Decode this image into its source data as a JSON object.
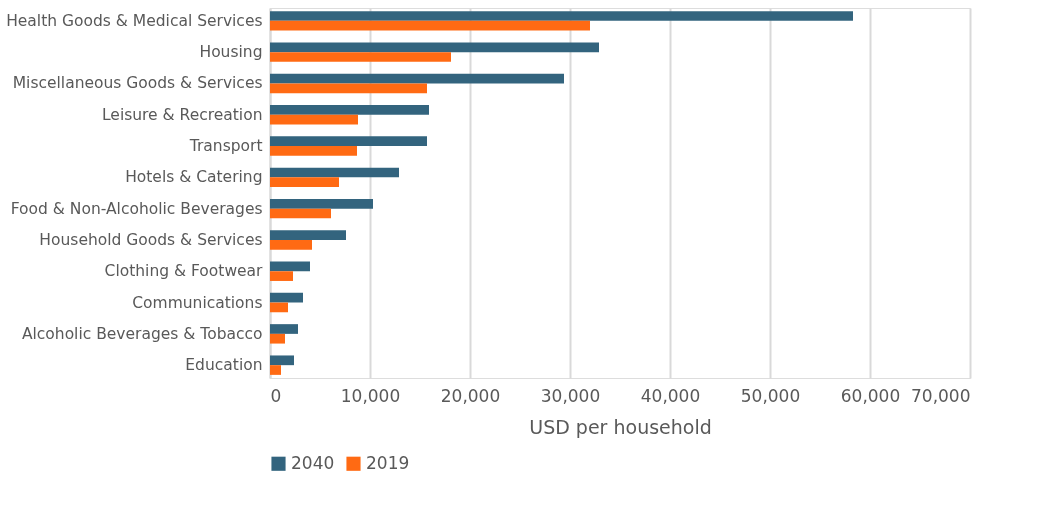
{
  "chart_data": {
    "type": "bar",
    "orientation": "horizontal",
    "xlabel": "USD per household",
    "categories": [
      "Health Goods & Medical Services",
      "Housing",
      "Miscellaneous Goods & Services",
      "Leisure & Recreation",
      "Transport",
      "Hotels & Catering",
      "Food & Non-Alcoholic Beverages",
      "Household Goods & Services",
      "Clothing & Footwear",
      "Communications",
      "Alcoholic Beverages & Tobacco",
      "Education"
    ],
    "series": [
      {
        "name": "2040",
        "color": "#33647e",
        "values": [
          58300,
          32900,
          29400,
          15900,
          15700,
          12900,
          10300,
          7600,
          4000,
          3300,
          2800,
          2400
        ]
      },
      {
        "name": "2019",
        "color": "#ff6a13",
        "values": [
          32000,
          18100,
          15700,
          8800,
          8700,
          6900,
          6100,
          4200,
          2300,
          1800,
          1500,
          1100
        ]
      }
    ],
    "xlim": [
      0,
      70000
    ],
    "xticks": [
      0,
      {
        "value": 10000,
        "label": "10,000"
      },
      {
        "value": 20000,
        "label": "20,000"
      },
      {
        "value": 30000,
        "label": "30,000"
      },
      {
        "value": 40000,
        "label": "40,000"
      },
      {
        "value": 50000,
        "label": "50,000"
      },
      {
        "value": 60000,
        "label": "60,000"
      },
      {
        "value": 70000,
        "label": "70,000"
      }
    ],
    "grid": "x",
    "legend": "bottom"
  }
}
